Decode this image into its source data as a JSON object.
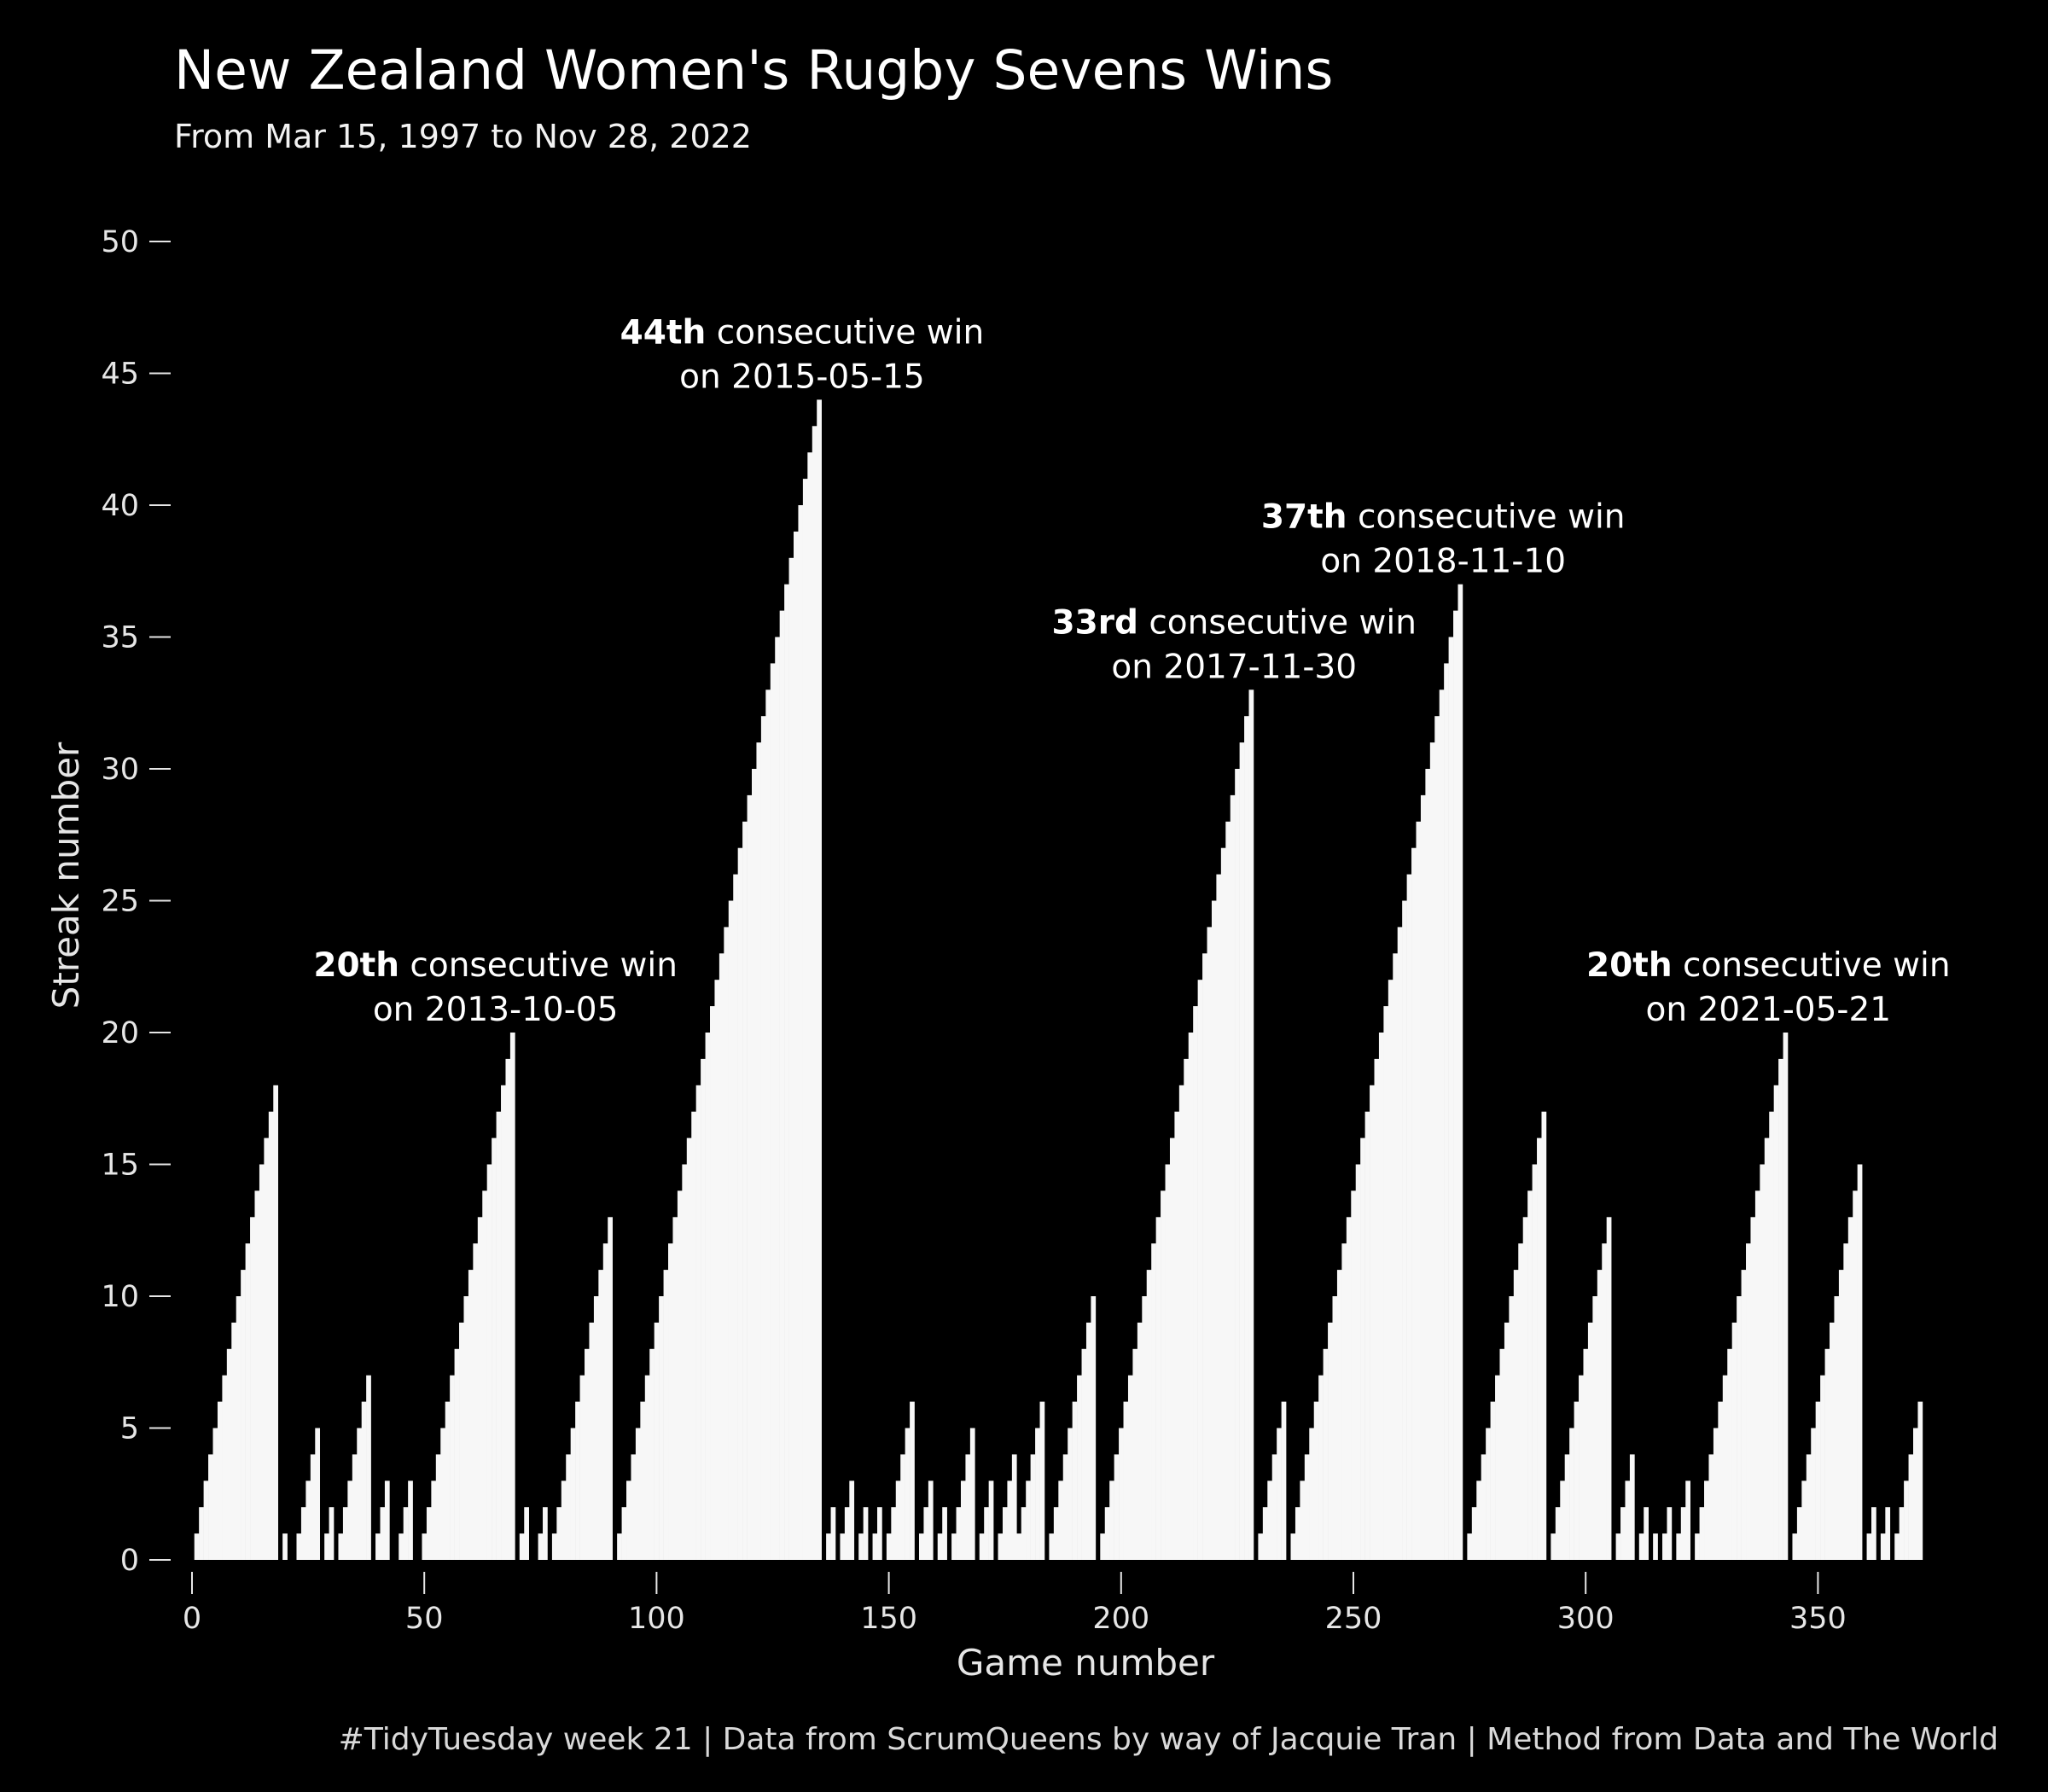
{
  "title": "New Zealand Women's Rugby Sevens Wins",
  "subtitle": "From Mar 15, 1997 to Nov 28, 2022",
  "caption": "#TidyTuesday week 21 | Data from ScrumQueens by way of Jacquie Tran | Method from Data and The World",
  "colors": {
    "background": "#000000",
    "bars": "#f7f7f7",
    "text": "#ffffff",
    "axis": "#e6e6e6"
  },
  "chart_data": {
    "type": "bar",
    "xlabel": "Game number",
    "ylabel": "Streak number",
    "xlim": [
      0,
      375
    ],
    "ylim": [
      0,
      50
    ],
    "x_ticks": [
      0,
      50,
      100,
      150,
      200,
      250,
      300,
      350
    ],
    "y_ticks": [
      0,
      5,
      10,
      15,
      20,
      25,
      30,
      35,
      40,
      45,
      50
    ],
    "grid": false,
    "legend": "none",
    "streaks": [
      {
        "start": 1,
        "length": 18
      },
      {
        "start": 20,
        "length": 1
      },
      {
        "start": 23,
        "length": 5
      },
      {
        "start": 29,
        "length": 2
      },
      {
        "start": 32,
        "length": 7
      },
      {
        "start": 40,
        "length": 3
      },
      {
        "start": 45,
        "length": 3
      },
      {
        "start": 50,
        "length": 20
      },
      {
        "start": 71,
        "length": 2
      },
      {
        "start": 75,
        "length": 2
      },
      {
        "start": 78,
        "length": 13
      },
      {
        "start": 92,
        "length": 44
      },
      {
        "start": 137,
        "length": 2
      },
      {
        "start": 140,
        "length": 3
      },
      {
        "start": 144,
        "length": 2
      },
      {
        "start": 147,
        "length": 2
      },
      {
        "start": 150,
        "length": 6
      },
      {
        "start": 157,
        "length": 3
      },
      {
        "start": 161,
        "length": 2
      },
      {
        "start": 164,
        "length": 5
      },
      {
        "start": 170,
        "length": 3
      },
      {
        "start": 174,
        "length": 4
      },
      {
        "start": 178,
        "length": 6
      },
      {
        "start": 185,
        "length": 10
      },
      {
        "start": 196,
        "length": 33
      },
      {
        "start": 230,
        "length": 6
      },
      {
        "start": 237,
        "length": 37
      },
      {
        "start": 275,
        "length": 17
      },
      {
        "start": 293,
        "length": 13
      },
      {
        "start": 307,
        "length": 4
      },
      {
        "start": 312,
        "length": 2
      },
      {
        "start": 315,
        "length": 1
      },
      {
        "start": 317,
        "length": 2
      },
      {
        "start": 320,
        "length": 3
      },
      {
        "start": 324,
        "length": 20
      },
      {
        "start": 345,
        "length": 15
      },
      {
        "start": 361,
        "length": 2
      },
      {
        "start": 364,
        "length": 2
      },
      {
        "start": 367,
        "length": 6
      }
    ],
    "annotations": [
      {
        "game": 69,
        "value": 20,
        "bold": "20th",
        "text": " consecutive win",
        "line2": "on 2013-10-05"
      },
      {
        "game": 135,
        "value": 44,
        "bold": "44th",
        "text": " consecutive win",
        "line2": "on 2015-05-15"
      },
      {
        "game": 228,
        "value": 33,
        "bold": "33rd",
        "text": " consecutive win",
        "line2": "on 2017-11-30"
      },
      {
        "game": 273,
        "value": 37,
        "bold": "37th",
        "text": " consecutive win",
        "line2": "on 2018-11-10"
      },
      {
        "game": 343,
        "value": 20,
        "bold": "20th",
        "text": " consecutive win",
        "line2": "on 2021-05-21"
      }
    ]
  }
}
